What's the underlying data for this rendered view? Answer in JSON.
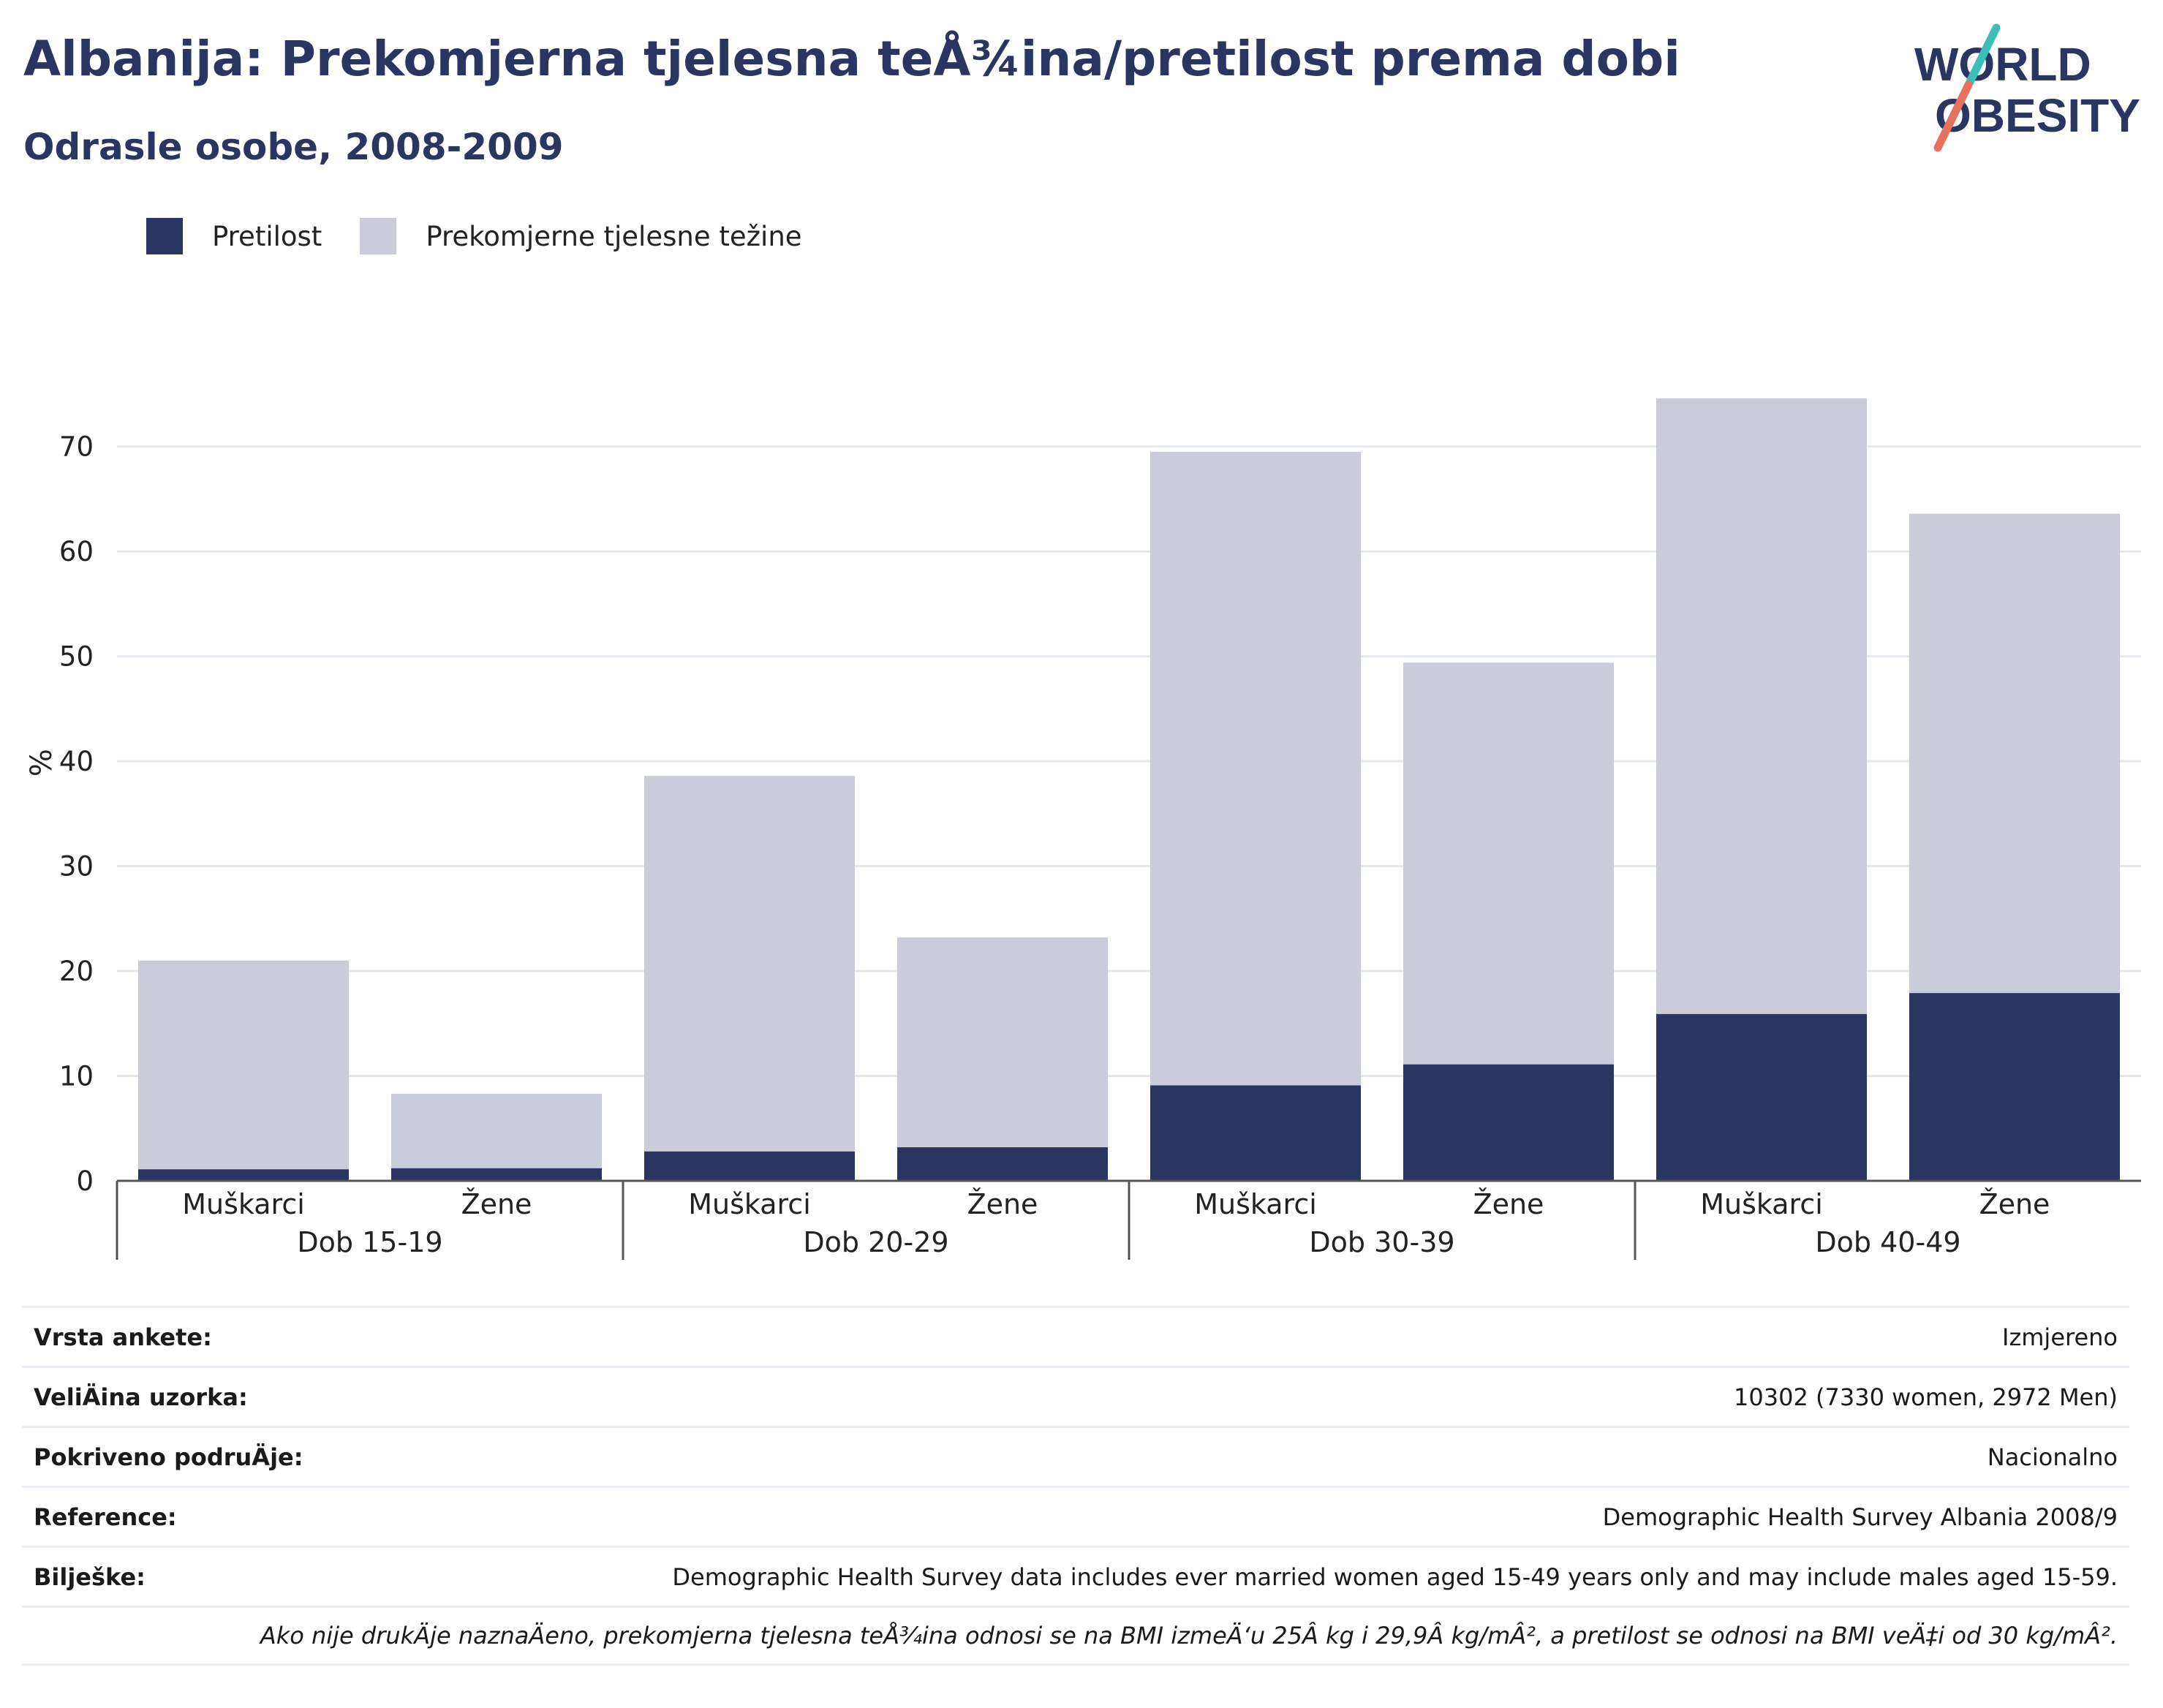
{
  "header": {
    "title": "Albanija: Prekomjerna tjelesna teÅ¾ina/pretilost prema dobi",
    "subtitle": "Odrasle osobe, 2008-2009"
  },
  "logo": {
    "line1": "WORLD",
    "line2": "OBESITY"
  },
  "colors": {
    "obesity": "#2a3562",
    "overweight": "#cacdd9",
    "title": "#2a3562",
    "logo_teal": "#3dbfb8",
    "logo_coral": "#e8705f"
  },
  "chart_data": {
    "type": "bar",
    "stacked": true,
    "ylabel": "%",
    "ylim": [
      0,
      75
    ],
    "yticks": [
      0,
      10,
      20,
      30,
      40,
      50,
      60,
      70
    ],
    "grid": true,
    "legend_position": "top-left",
    "groups": [
      "Dob 15-19",
      "Dob 20-29",
      "Dob 30-39",
      "Dob 40-49"
    ],
    "categories": [
      "Muškarci",
      "Žene",
      "Muškarci",
      "Žene",
      "Muškarci",
      "Žene",
      "Muškarci",
      "Žene"
    ],
    "series": [
      {
        "name": "Pretilost",
        "values": [
          1.1,
          1.2,
          2.8,
          3.2,
          9.1,
          11.1,
          15.9,
          17.9
        ]
      },
      {
        "name": "Prekomjerne tjelesne težine",
        "values": [
          19.9,
          7.1,
          35.8,
          20.0,
          60.4,
          38.3,
          58.7,
          45.7
        ]
      }
    ]
  },
  "info": {
    "rows": [
      {
        "label": "Vrsta ankete:",
        "value": "Izmjereno"
      },
      {
        "label": "VeliÄ\u001fina uzorka:",
        "value": "10302 (7330 women, 2972 Men)"
      },
      {
        "label": "Pokriveno podruÄ\u001fje:",
        "value": "Nacionalno"
      },
      {
        "label": "Reference:",
        "value": "Demographic Health Survey Albania 2008/9"
      },
      {
        "label": "Bilješke:",
        "value": "Demographic Health Survey data includes ever married women aged 15-49 years only and may include males aged 15-59."
      }
    ],
    "footnote": "Ako nije drukÄ\u001fje naznaÄ\u001feno, prekomjerna tjelesna teÅ¾ina odnosi se na BMI izmeÄ‘u 25Â kg i 29,9Â kg/mÂ², a pretilost se odnosi na BMI veÄ‡i od 30 kg/mÂ²."
  }
}
